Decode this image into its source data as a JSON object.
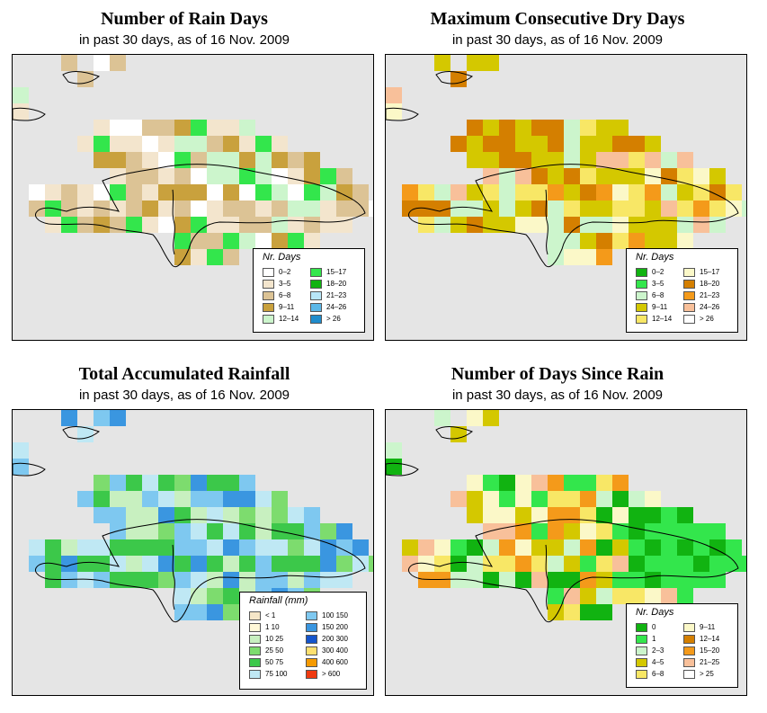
{
  "panels": [
    {
      "id": "rain-days",
      "title": "Number of Rain Days",
      "subtitle": "in past 30 days, as of  16 Nov. 2009",
      "legend": {
        "title": "Nr. Days",
        "items": [
          {
            "label": "0–2",
            "color": "#ffffff"
          },
          {
            "label": "3–5",
            "color": "#f3e5cd"
          },
          {
            "label": "6–8",
            "color": "#dcc395"
          },
          {
            "label": "9–11",
            "color": "#c9a13d"
          },
          {
            "label": "12–14",
            "color": "#ccf5cc"
          },
          {
            "label": "15–17",
            "color": "#33e64c"
          },
          {
            "label": "18–20",
            "color": "#11b311"
          },
          {
            "label": "21–23",
            "color": "#b8e6f8"
          },
          {
            "label": "24–26",
            "color": "#5cb8e8"
          },
          {
            "label": "> 26",
            "color": "#1f8ccc"
          }
        ]
      }
    },
    {
      "id": "dry-days",
      "title": "Maximum Consecutive Dry Days",
      "subtitle": "in past 30 days, as of  16 Nov. 2009",
      "legend": {
        "title": "Nr. Days",
        "items": [
          {
            "label": "0–2",
            "color": "#11b311"
          },
          {
            "label": "3–5",
            "color": "#33e64c"
          },
          {
            "label": "6–8",
            "color": "#ccf5cc"
          },
          {
            "label": "9–11",
            "color": "#d4c800"
          },
          {
            "label": "12–14",
            "color": "#f8e766"
          },
          {
            "label": "15–17",
            "color": "#fbf8c8"
          },
          {
            "label": "18–20",
            "color": "#d47f00"
          },
          {
            "label": "21–23",
            "color": "#f49a1a"
          },
          {
            "label": "24–26",
            "color": "#f8c09a"
          },
          {
            "label": "> 26",
            "color": "#ffffff"
          }
        ]
      }
    },
    {
      "id": "rainfall",
      "title": "Total Accumulated Rainfall",
      "subtitle": "in past 30 days, as of  16 Nov. 2009",
      "legend": {
        "title": "Rainfall (mm)",
        "items": [
          {
            "label": "< 1",
            "color": "#f5e6c8"
          },
          {
            "label": "1   10",
            "color": "#fff8d8"
          },
          {
            "label": "10   25",
            "color": "#c8f0c0"
          },
          {
            "label": "25   50",
            "color": "#7ddc6e"
          },
          {
            "label": "50   75",
            "color": "#3cc84a"
          },
          {
            "label": "75   100",
            "color": "#bfe8f4"
          },
          {
            "label": "100   150",
            "color": "#7ec8f0"
          },
          {
            "label": "150   200",
            "color": "#3a96e0"
          },
          {
            "label": "200   300",
            "color": "#1555cc"
          },
          {
            "label": "300   400",
            "color": "#fde070"
          },
          {
            "label": "400   600",
            "color": "#f59a00"
          },
          {
            "label": "> 600",
            "color": "#f03a10"
          }
        ]
      }
    },
    {
      "id": "days-since",
      "title": "Number of Days Since Rain",
      "subtitle": "in past 30 days, as of  16 Nov. 2009",
      "legend": {
        "title": "Nr. Days",
        "items": [
          {
            "label": "0",
            "color": "#11b311"
          },
          {
            "label": "1",
            "color": "#33e64c"
          },
          {
            "label": "2–3",
            "color": "#ccf5cc"
          },
          {
            "label": "4–5",
            "color": "#d4c800"
          },
          {
            "label": "6–8",
            "color": "#f8e766"
          },
          {
            "label": "9–11",
            "color": "#fbf8c8"
          },
          {
            "label": "12–14",
            "color": "#d47f00"
          },
          {
            "label": "15–20",
            "color": "#f49a1a"
          },
          {
            "label": "21–25",
            "color": "#f8c09a"
          },
          {
            "label": "> 25",
            "color": "#ffffff"
          }
        ]
      }
    }
  ]
}
